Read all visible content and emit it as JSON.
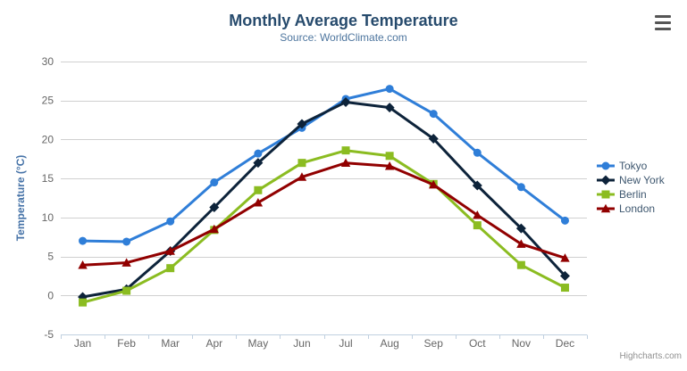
{
  "header": {
    "title": "Monthly Average Temperature",
    "subtitle": "Source: WorldClimate.com"
  },
  "export_menu": {
    "icon": "hamburger-icon"
  },
  "credits": "Highcharts.com",
  "chart_data": {
    "type": "line",
    "title": "Monthly Average Temperature",
    "subtitle": "Source: WorldClimate.com",
    "categories": [
      "Jan",
      "Feb",
      "Mar",
      "Apr",
      "May",
      "Jun",
      "Jul",
      "Aug",
      "Sep",
      "Oct",
      "Nov",
      "Dec"
    ],
    "xlabel": "",
    "ylabel": "Temperature (°C)",
    "ylim": [
      -5,
      30
    ],
    "ytick_interval": 5,
    "grid": true,
    "legend_position": "right",
    "axis_line_color": "#c0d0e0",
    "grid_line_color": "#d0d0d0",
    "series": [
      {
        "name": "Tokyo",
        "color": "#2f7ed8",
        "marker": "circle",
        "values": [
          7.0,
          6.9,
          9.5,
          14.5,
          18.2,
          21.5,
          25.2,
          26.5,
          23.3,
          18.3,
          13.9,
          9.6
        ]
      },
      {
        "name": "New York",
        "color": "#0d233a",
        "marker": "diamond",
        "values": [
          -0.2,
          0.8,
          5.7,
          11.3,
          17.0,
          22.0,
          24.8,
          24.1,
          20.1,
          14.1,
          8.6,
          2.5
        ]
      },
      {
        "name": "Berlin",
        "color": "#8bbc21",
        "marker": "square",
        "values": [
          -0.9,
          0.6,
          3.5,
          8.4,
          13.5,
          17.0,
          18.6,
          17.9,
          14.3,
          9.0,
          3.9,
          1.0
        ]
      },
      {
        "name": "London",
        "color": "#910000",
        "marker": "triangle",
        "values": [
          3.9,
          4.2,
          5.7,
          8.5,
          11.9,
          15.2,
          17.0,
          16.6,
          14.2,
          10.3,
          6.6,
          4.8
        ]
      }
    ]
  }
}
